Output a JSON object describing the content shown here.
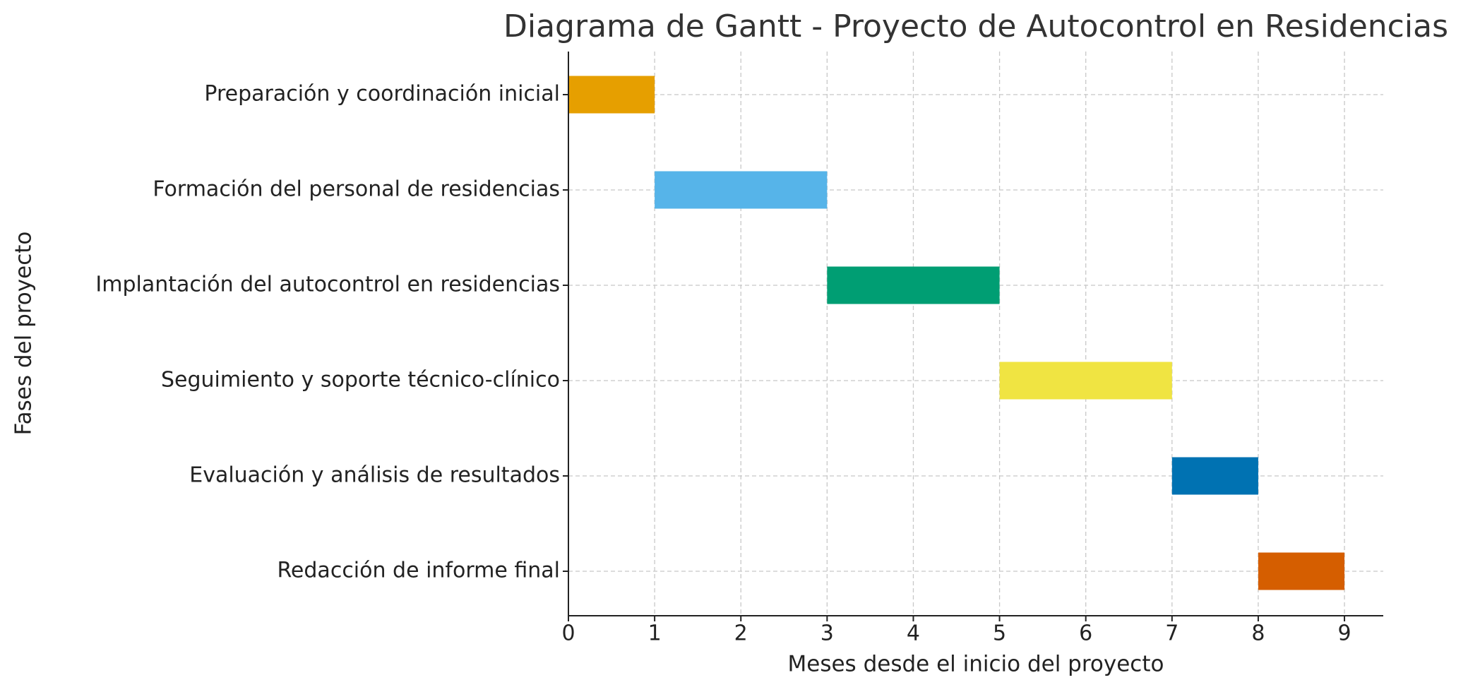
{
  "chart_data": {
    "type": "gantt",
    "title": "Diagrama de Gantt - Proyecto de Autocontrol en Residencias",
    "x_label": "Meses desde el inicio del proyecto",
    "y_label": "Fases del proyecto",
    "categories": [
      "Preparación y coordinación inicial",
      "Formación del personal de residencias",
      "Implantación del autocontrol en residencias",
      "Seguimiento y soporte técnico-clínico",
      "Evaluación y análisis de resultados",
      "Redacción de informe final"
    ],
    "start": [
      0,
      1,
      3,
      5,
      7,
      8
    ],
    "end": [
      1,
      3,
      5,
      7,
      8,
      9
    ],
    "colors": [
      "#E69F00",
      "#56B4E9",
      "#009E73",
      "#F0E442",
      "#0072B2",
      "#D55E00"
    ],
    "xlim": [
      0,
      9.45
    ],
    "xticks": [
      0,
      1,
      2,
      3,
      4,
      5,
      6,
      7,
      8,
      9
    ],
    "grid": true
  }
}
